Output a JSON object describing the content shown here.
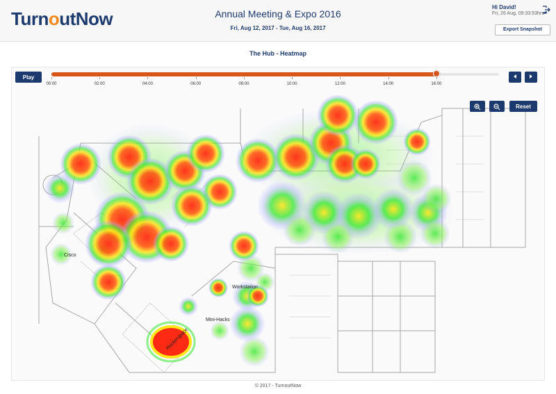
{
  "header": {
    "logo": {
      "part1": "Turn",
      "part2": "o",
      "part3": "utNow"
    },
    "event_title": "Annual Meeting & Expo 2016",
    "event_dates": "Fri, Aug 12, 2017 - Tue, Aug 16, 2017",
    "greeting": "Hi David!",
    "timestamp": "Fri, 26 Aug, 09:33:53hrs",
    "export_label": "Export Snapshot",
    "logout_icon": "logout-icon"
  },
  "page": {
    "title": "The Hub - Heatmap"
  },
  "controls": {
    "play_label": "Play",
    "timeline": {
      "ticks": [
        "00:00",
        "02:00",
        "04:00",
        "06:00",
        "08:00",
        "10:00",
        "12:00",
        "14:00",
        "16:00"
      ],
      "progress": 0.86
    },
    "prev_icon": "step-back-icon",
    "next_icon": "step-forward-icon",
    "zoom_in_icon": "zoom-in-icon",
    "zoom_out_icon": "zoom-out-icon",
    "reset_label": "Reset"
  },
  "map": {
    "labels": {
      "cisco": "Cisco",
      "workstation": "Workstation",
      "mini_hacks": "Mini-Hacks",
      "hackerspace": "Hackerspace"
    },
    "heat_colors": {
      "hot": "#ff2a14",
      "warm": "#ffe51a",
      "mild": "#3fe83a",
      "cool": "#a8a8ff"
    }
  },
  "footer": {
    "copyright": "© 2017 - TurnoutNow"
  }
}
